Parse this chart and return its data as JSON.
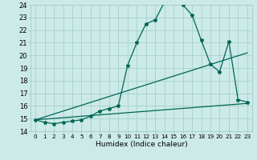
{
  "xlabel": "Humidex (Indice chaleur)",
  "xlim": [
    -0.5,
    23.5
  ],
  "ylim": [
    14,
    24
  ],
  "yticks": [
    14,
    15,
    16,
    17,
    18,
    19,
    20,
    21,
    22,
    23,
    24
  ],
  "xticks": [
    0,
    1,
    2,
    3,
    4,
    5,
    6,
    7,
    8,
    9,
    10,
    11,
    12,
    13,
    14,
    15,
    16,
    17,
    18,
    19,
    20,
    21,
    22,
    23
  ],
  "bg_color": "#cceae7",
  "grid_color": "#aad4d0",
  "line_color": "#006655",
  "line1_x": [
    0,
    1,
    2,
    3,
    4,
    5,
    6,
    7,
    8,
    9,
    10,
    11,
    12,
    13,
    14,
    15,
    16,
    17,
    18,
    19,
    20,
    21,
    22,
    23
  ],
  "line1_y": [
    14.9,
    14.7,
    14.6,
    14.7,
    14.8,
    14.9,
    15.2,
    15.6,
    15.8,
    16.0,
    19.2,
    21.0,
    22.5,
    22.8,
    24.2,
    24.3,
    24.0,
    23.2,
    21.2,
    19.3,
    18.7,
    21.1,
    16.5,
    16.3
  ],
  "line2_x": [
    0,
    23
  ],
  "line2_y": [
    14.9,
    20.2
  ],
  "line3_x": [
    0,
    23
  ],
  "line3_y": [
    14.9,
    16.2
  ],
  "xlabel_fontsize": 6.5,
  "tick_fontsize": 6,
  "xtick_fontsize": 5.2
}
